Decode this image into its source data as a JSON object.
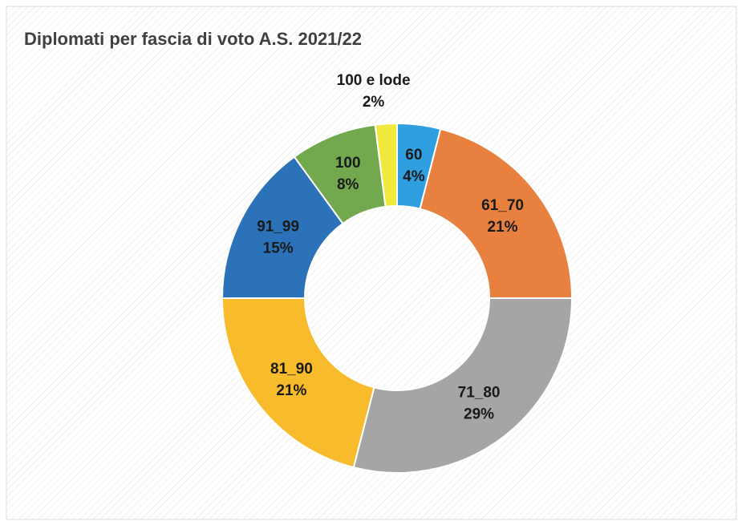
{
  "chart_data": {
    "type": "donut",
    "title": "Diplomati per fascia di voto A.S. 2021/22",
    "categories": [
      "60",
      "61_70",
      "71_80",
      "81_90",
      "91_99",
      "100",
      "100 e lode"
    ],
    "values": [
      4,
      21,
      29,
      21,
      15,
      8,
      2
    ],
    "value_labels": [
      "4%",
      "21%",
      "29%",
      "21%",
      "15%",
      "8%",
      "2%"
    ],
    "colors": [
      "#2f9fe0",
      "#e8803f",
      "#a5a5a5",
      "#f7bb2b",
      "#2b72b8",
      "#72a94f",
      "#f0ea3c"
    ]
  }
}
